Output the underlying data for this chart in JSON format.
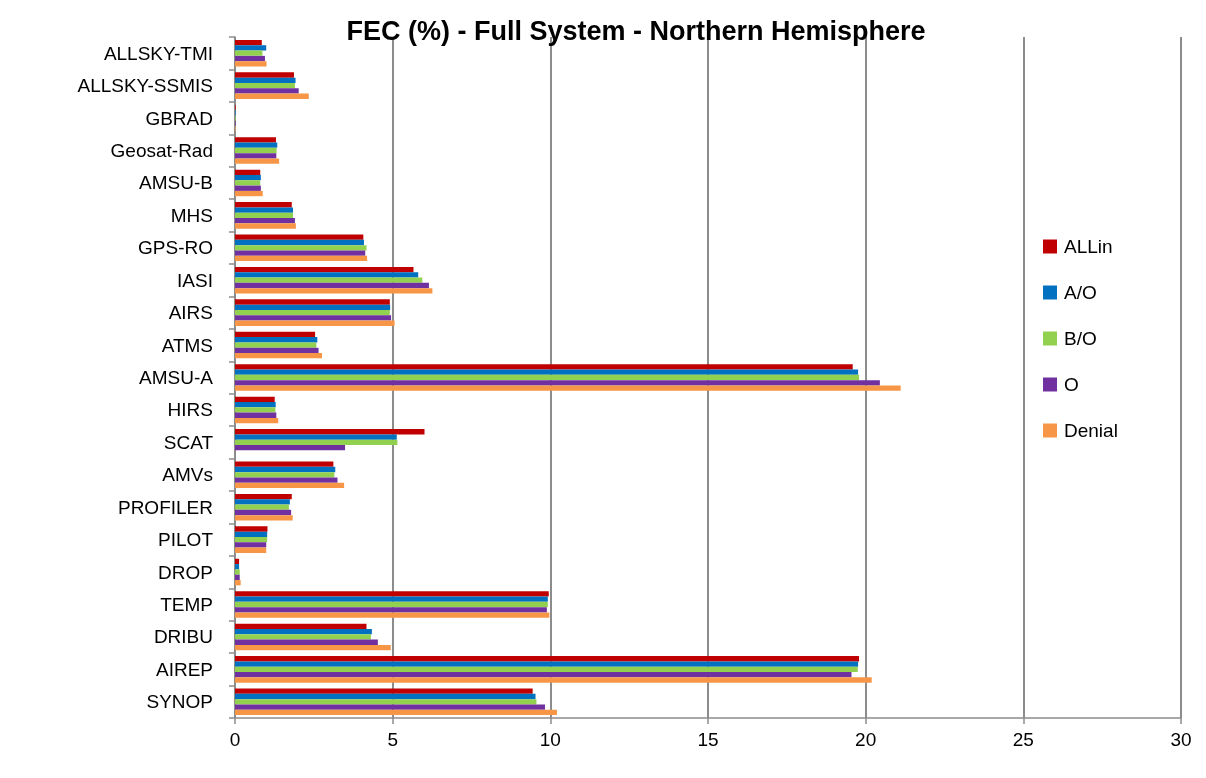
{
  "chart_data": {
    "type": "bar",
    "orientation": "horizontal",
    "title": "FEC (%) - Full System - Northern Hemisphere",
    "categories": [
      "ALLSKY-TMI",
      "ALLSKY-SSMIS",
      "GBRAD",
      "Geosat-Rad",
      "AMSU-B",
      "MHS",
      "GPS-RO",
      "IASI",
      "AIRS",
      "ATMS",
      "AMSU-A",
      "HIRS",
      "SCAT",
      "AMVs",
      "PROFILER",
      "PILOT",
      "DROP",
      "TEMP",
      "DRIBU",
      "AIREP",
      "SYNOP"
    ],
    "series": [
      {
        "name": "ALLin",
        "color": "#c00000",
        "values": [
          0.85,
          1.87,
          0.02,
          1.3,
          0.8,
          1.8,
          4.07,
          5.66,
          4.91,
          2.54,
          19.59,
          1.26,
          6.01,
          3.12,
          1.8,
          1.03,
          0.13,
          9.95,
          4.17,
          19.79,
          9.44
        ]
      },
      {
        "name": "A/O",
        "color": "#0070c0",
        "values": [
          0.99,
          1.92,
          0.02,
          1.34,
          0.82,
          1.84,
          4.09,
          5.81,
          4.92,
          2.61,
          19.76,
          1.29,
          5.13,
          3.18,
          1.74,
          1.02,
          0.13,
          9.92,
          4.34,
          19.76,
          9.53
        ]
      },
      {
        "name": "B/O",
        "color": "#92d050",
        "values": [
          0.87,
          1.9,
          0.02,
          1.32,
          0.8,
          1.84,
          4.17,
          5.94,
          4.91,
          2.58,
          19.79,
          1.28,
          5.15,
          3.15,
          1.71,
          1.02,
          0.15,
          9.92,
          4.31,
          19.75,
          9.56
        ]
      },
      {
        "name": "O",
        "color": "#7030a0",
        "values": [
          0.95,
          2.02,
          0.02,
          1.31,
          0.82,
          1.9,
          4.13,
          6.15,
          4.95,
          2.65,
          20.45,
          1.31,
          3.49,
          3.25,
          1.78,
          0.99,
          0.15,
          9.89,
          4.53,
          19.55,
          9.83
        ]
      },
      {
        "name": "Denial",
        "color": "#f79646",
        "values": [
          1.0,
          2.34,
          0.02,
          1.4,
          0.88,
          1.93,
          4.19,
          6.26,
          5.06,
          2.76,
          21.11,
          1.37,
          null,
          3.46,
          1.83,
          0.99,
          0.18,
          9.97,
          4.94,
          20.19,
          10.21
        ]
      }
    ],
    "xlim": [
      0,
      30
    ],
    "xticks": [
      0,
      5,
      10,
      15,
      20,
      25,
      30
    ],
    "grid": "x",
    "legend": "right"
  }
}
